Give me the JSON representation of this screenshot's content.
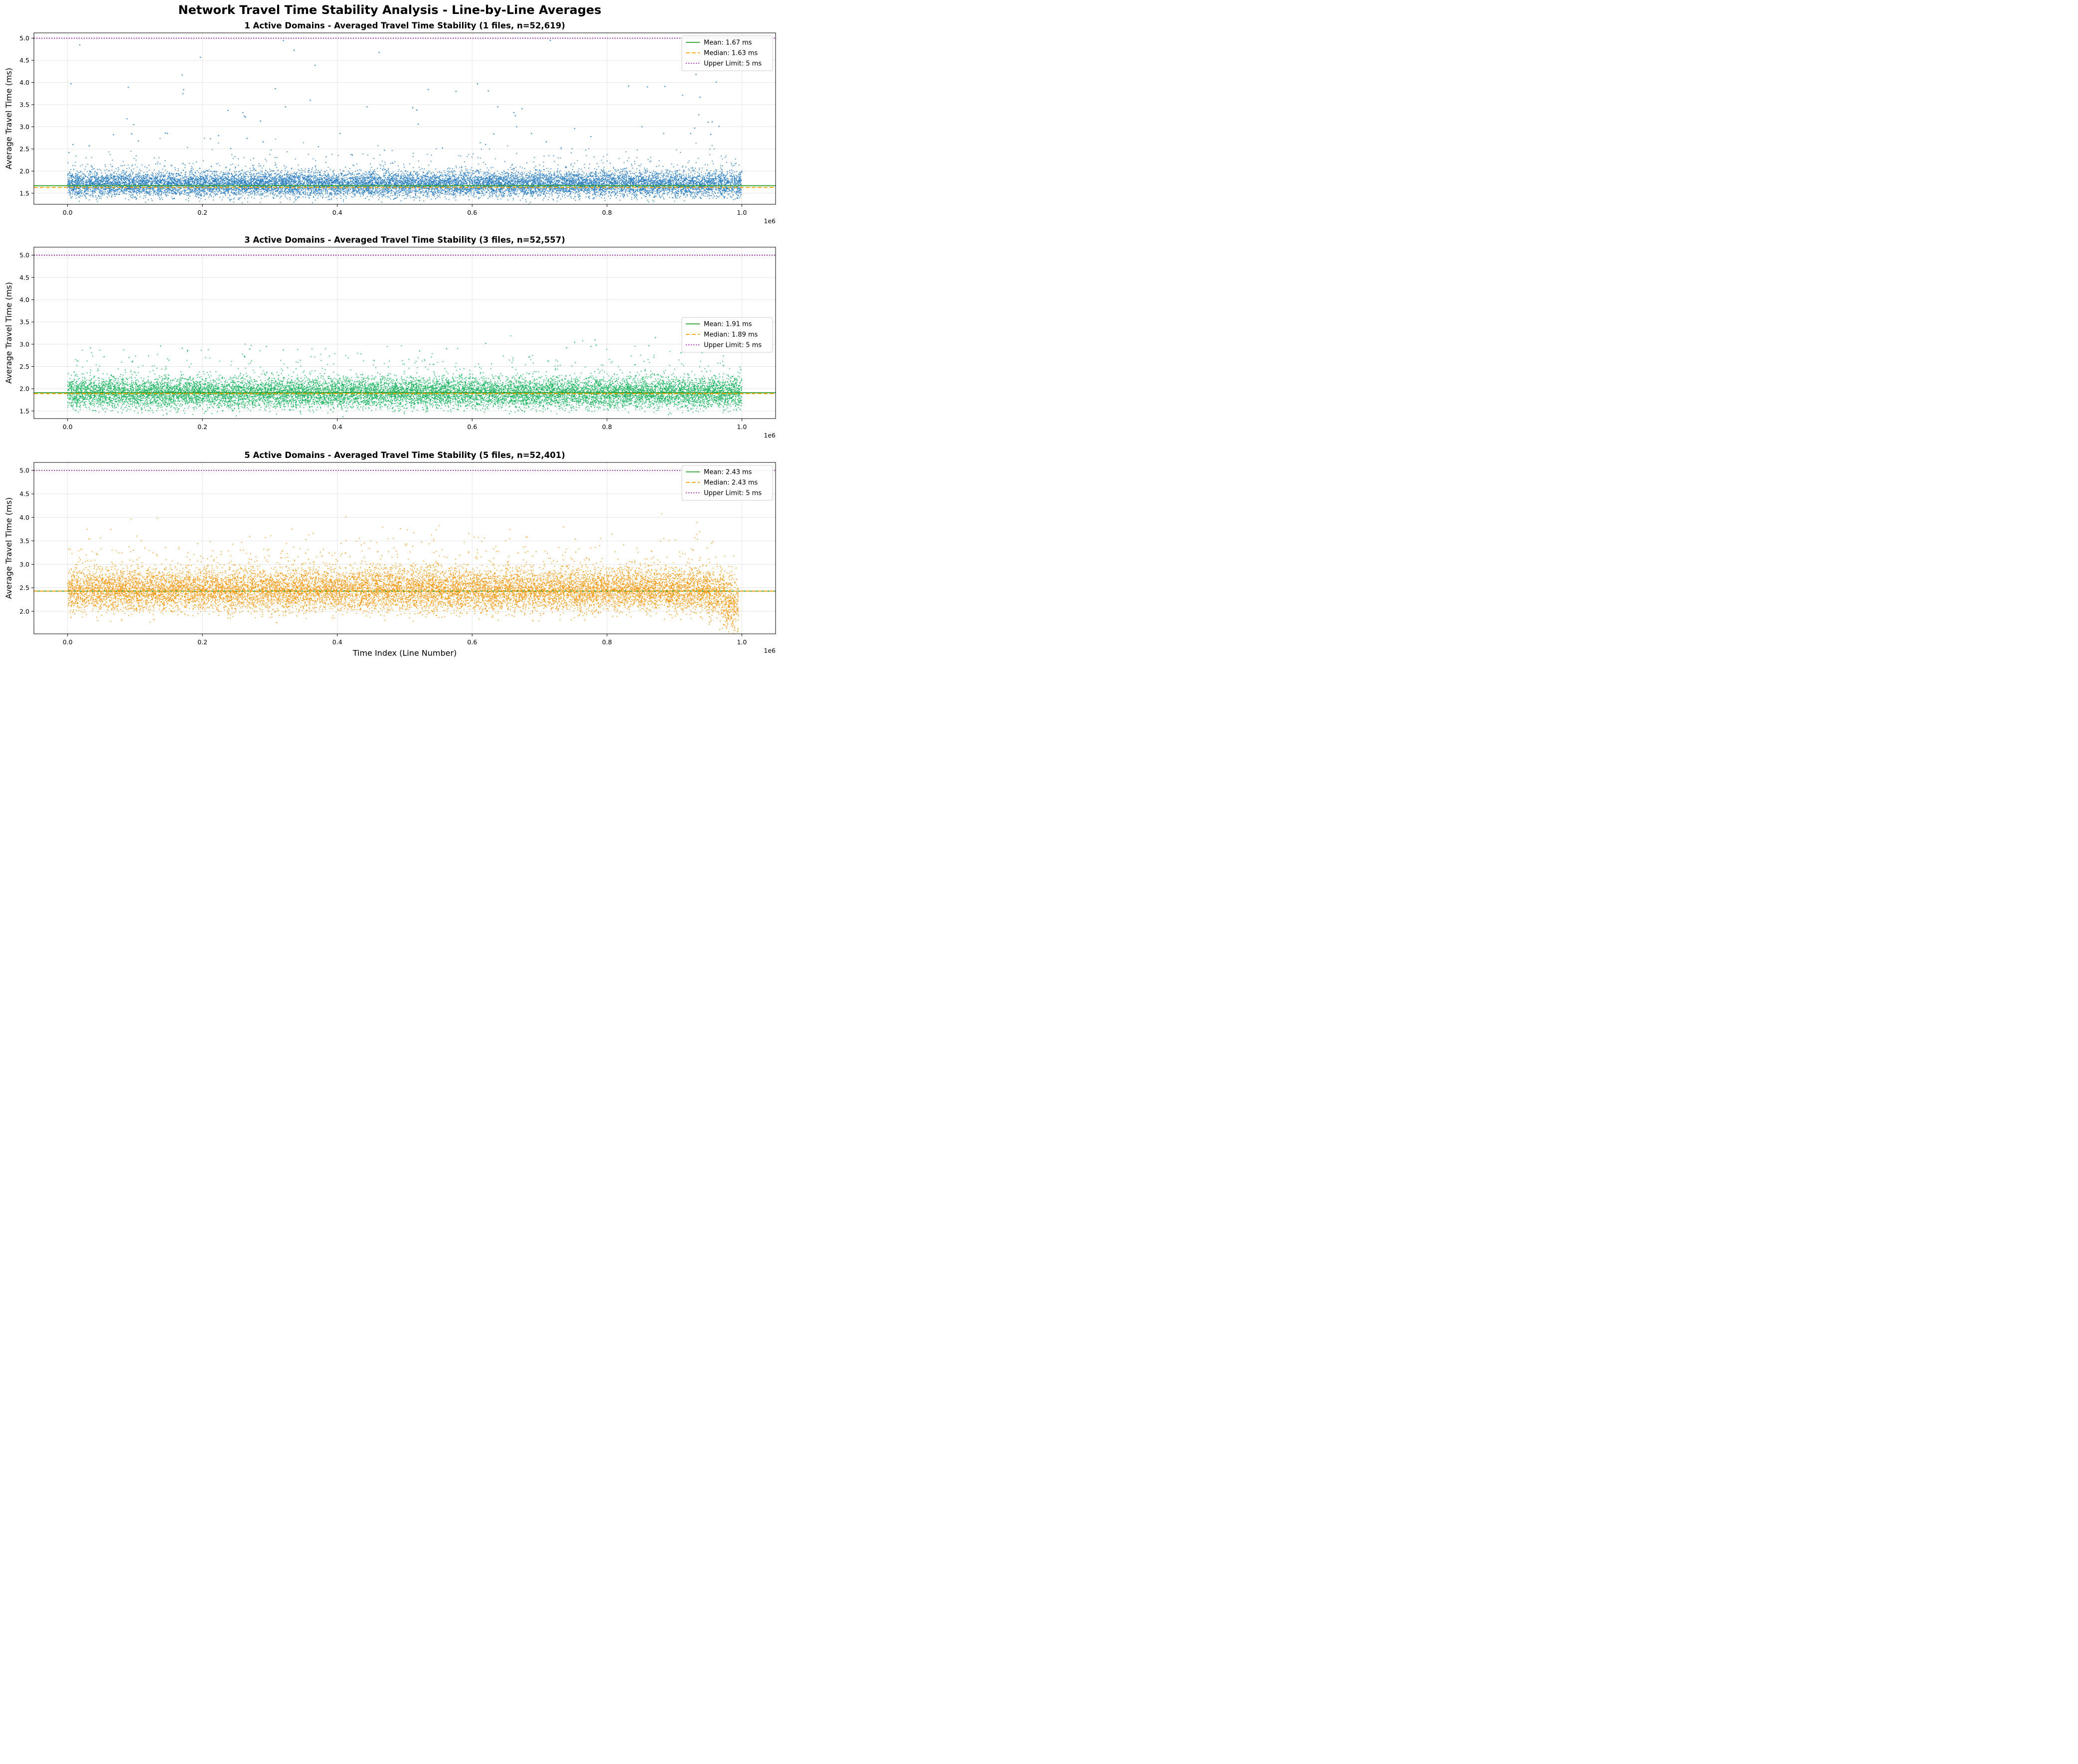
{
  "figure": {
    "title": "Network Travel Time Stability Analysis - Line-by-Line Averages"
  },
  "chart_data": [
    {
      "type": "scatter",
      "title": "1 Active Domains - Averaged Travel Time Stability (1 files, n=52,619)",
      "xlabel": "",
      "ylabel": "Average Travel Time (ms)",
      "x_offset_label": "1e6",
      "xlim": [
        -50000,
        1050000
      ],
      "ylim": [
        1.25,
        5.12
      ],
      "xticks": [
        0,
        200000,
        400000,
        600000,
        800000,
        1000000
      ],
      "xtick_labels": [
        "0.0",
        "0.2",
        "0.4",
        "0.6",
        "0.8",
        "1.0"
      ],
      "yticks": [
        1.5,
        2.0,
        2.5,
        3.0,
        3.5,
        4.0,
        4.5,
        5.0
      ],
      "ytick_labels": [
        "1.5",
        "2.0",
        "2.5",
        "3.0",
        "3.5",
        "4.0",
        "4.5",
        "5.0"
      ],
      "grid": true,
      "legend_position": "top-right",
      "point_color": "#2f80c0",
      "n": 52619,
      "band": {
        "x_range": [
          0,
          1000000
        ],
        "y_core": [
          1.45,
          1.95
        ],
        "profile": "flat"
      },
      "outliers": [
        {
          "x": 2000,
          "y": 2.42
        },
        {
          "x": 5000,
          "y": 3.97
        },
        {
          "x": 8000,
          "y": 2.6
        },
        {
          "x": 18000,
          "y": 4.85
        },
        {
          "x": 32000,
          "y": 2.57
        },
        {
          "x": 68000,
          "y": 2.82
        },
        {
          "x": 88000,
          "y": 3.18
        },
        {
          "x": 90000,
          "y": 3.89
        },
        {
          "x": 95000,
          "y": 2.84
        },
        {
          "x": 98000,
          "y": 3.05
        },
        {
          "x": 105000,
          "y": 2.68
        },
        {
          "x": 145000,
          "y": 2.86
        },
        {
          "x": 148000,
          "y": 2.85
        },
        {
          "x": 170000,
          "y": 4.17
        },
        {
          "x": 171000,
          "y": 3.75
        },
        {
          "x": 172000,
          "y": 3.84
        },
        {
          "x": 197000,
          "y": 4.57
        },
        {
          "x": 212000,
          "y": 2.73
        },
        {
          "x": 224000,
          "y": 2.8
        },
        {
          "x": 238000,
          "y": 3.37
        },
        {
          "x": 242000,
          "y": 2.51
        },
        {
          "x": 260000,
          "y": 3.32
        },
        {
          "x": 262000,
          "y": 3.24
        },
        {
          "x": 264000,
          "y": 3.22
        },
        {
          "x": 266000,
          "y": 2.74
        },
        {
          "x": 286000,
          "y": 3.13
        },
        {
          "x": 290000,
          "y": 2.66
        },
        {
          "x": 308000,
          "y": 3.86
        },
        {
          "x": 320000,
          "y": 4.95
        },
        {
          "x": 323000,
          "y": 3.45
        },
        {
          "x": 336000,
          "y": 4.73
        },
        {
          "x": 360000,
          "y": 3.6
        },
        {
          "x": 367000,
          "y": 4.39
        },
        {
          "x": 372000,
          "y": 2.55
        },
        {
          "x": 404000,
          "y": 2.85
        },
        {
          "x": 422000,
          "y": 2.37
        },
        {
          "x": 444000,
          "y": 3.45
        },
        {
          "x": 462000,
          "y": 4.68
        },
        {
          "x": 470000,
          "y": 2.47
        },
        {
          "x": 512000,
          "y": 3.43
        },
        {
          "x": 518000,
          "y": 3.38
        },
        {
          "x": 520000,
          "y": 3.06
        },
        {
          "x": 535000,
          "y": 3.84
        },
        {
          "x": 556000,
          "y": 2.52
        },
        {
          "x": 576000,
          "y": 3.8
        },
        {
          "x": 608000,
          "y": 3.97
        },
        {
          "x": 612000,
          "y": 2.64
        },
        {
          "x": 620000,
          "y": 2.6
        },
        {
          "x": 624000,
          "y": 3.81
        },
        {
          "x": 632000,
          "y": 2.84
        },
        {
          "x": 638000,
          "y": 3.45
        },
        {
          "x": 662000,
          "y": 3.32
        },
        {
          "x": 664000,
          "y": 3.25
        },
        {
          "x": 666000,
          "y": 3.0
        },
        {
          "x": 674000,
          "y": 3.41
        },
        {
          "x": 688000,
          "y": 2.85
        },
        {
          "x": 710000,
          "y": 2.66
        },
        {
          "x": 716000,
          "y": 4.95
        },
        {
          "x": 752000,
          "y": 2.96
        },
        {
          "x": 776000,
          "y": 2.78
        },
        {
          "x": 832000,
          "y": 3.92
        },
        {
          "x": 852000,
          "y": 3.0
        },
        {
          "x": 860000,
          "y": 3.9
        },
        {
          "x": 884000,
          "y": 2.85
        },
        {
          "x": 886000,
          "y": 3.91
        },
        {
          "x": 912000,
          "y": 3.71
        },
        {
          "x": 924000,
          "y": 2.85
        },
        {
          "x": 930000,
          "y": 2.97
        },
        {
          "x": 932000,
          "y": 4.18
        },
        {
          "x": 936000,
          "y": 3.27
        },
        {
          "x": 938000,
          "y": 3.67
        },
        {
          "x": 950000,
          "y": 3.1
        },
        {
          "x": 954000,
          "y": 2.83
        },
        {
          "x": 956000,
          "y": 3.11
        },
        {
          "x": 962000,
          "y": 4.01
        },
        {
          "x": 966000,
          "y": 3.01
        }
      ],
      "reference_lines": [
        {
          "label": "Mean: 1.67 ms",
          "y": 1.67,
          "color": "#2ca02c",
          "style": "solid"
        },
        {
          "label": "Median: 1.63 ms",
          "y": 1.63,
          "color": "#ffa000",
          "style": "dashed"
        },
        {
          "label": "Upper Limit: 5 ms",
          "y": 5.0,
          "color": "#a020b0",
          "style": "dotted"
        }
      ]
    },
    {
      "type": "scatter",
      "title": "3 Active Domains - Averaged Travel Time Stability (3 files, n=52,557)",
      "xlabel": "",
      "ylabel": "Average Travel Time (ms)",
      "x_offset_label": "1e6",
      "xlim": [
        -50000,
        1050000
      ],
      "ylim": [
        1.33,
        5.18
      ],
      "xticks": [
        0,
        200000,
        400000,
        600000,
        800000,
        1000000
      ],
      "xtick_labels": [
        "0.0",
        "0.2",
        "0.4",
        "0.6",
        "0.8",
        "1.0"
      ],
      "yticks": [
        1.5,
        2.0,
        2.5,
        3.0,
        3.5,
        4.0,
        4.5,
        5.0
      ],
      "ytick_labels": [
        "1.5",
        "2.0",
        "2.5",
        "3.0",
        "3.5",
        "4.0",
        "4.5",
        "5.0"
      ],
      "grid": true,
      "legend_position": "center-right",
      "point_color": "#22b565",
      "n": 52557,
      "band": {
        "x_range": [
          0,
          1000000
        ],
        "y_core": [
          1.6,
          2.2
        ],
        "profile": "flat"
      },
      "outliers": [
        {
          "x": 34000,
          "y": 2.92
        },
        {
          "x": 54000,
          "y": 2.72
        },
        {
          "x": 138000,
          "y": 2.96
        },
        {
          "x": 170000,
          "y": 2.91
        },
        {
          "x": 178000,
          "y": 2.86
        },
        {
          "x": 270000,
          "y": 2.89
        },
        {
          "x": 295000,
          "y": 2.95
        },
        {
          "x": 320000,
          "y": 2.87
        },
        {
          "x": 522000,
          "y": 2.85
        },
        {
          "x": 562000,
          "y": 2.9
        },
        {
          "x": 620000,
          "y": 3.02
        },
        {
          "x": 740000,
          "y": 2.92
        },
        {
          "x": 752000,
          "y": 3.04
        },
        {
          "x": 776000,
          "y": 2.95
        },
        {
          "x": 782000,
          "y": 3.1
        },
        {
          "x": 784000,
          "y": 2.98
        },
        {
          "x": 862000,
          "y": 2.97
        },
        {
          "x": 872000,
          "y": 3.15
        },
        {
          "x": 910000,
          "y": 2.81
        }
      ],
      "reference_lines": [
        {
          "label": "Mean: 1.91 ms",
          "y": 1.91,
          "color": "#2ca02c",
          "style": "solid"
        },
        {
          "label": "Median: 1.89 ms",
          "y": 1.89,
          "color": "#ffa000",
          "style": "dashed"
        },
        {
          "label": "Upper Limit: 5 ms",
          "y": 5.0,
          "color": "#a020b0",
          "style": "dotted"
        }
      ]
    },
    {
      "type": "scatter",
      "title": "5 Active Domains - Averaged Travel Time Stability (5 files, n=52,401)",
      "xlabel": "Time Index (Line Number)",
      "ylabel": "Average Travel Time (ms)",
      "x_offset_label": "1e6",
      "xlim": [
        -50000,
        1050000
      ],
      "ylim": [
        1.52,
        5.17
      ],
      "xticks": [
        0,
        200000,
        400000,
        600000,
        800000,
        1000000
      ],
      "xtick_labels": [
        "0.0",
        "0.2",
        "0.4",
        "0.6",
        "0.8",
        "1.0"
      ],
      "yticks": [
        2.0,
        2.5,
        3.0,
        3.5,
        4.0,
        4.5,
        5.0
      ],
      "ytick_labels": [
        "2.0",
        "2.5",
        "3.0",
        "3.5",
        "4.0",
        "4.5",
        "5.0"
      ],
      "grid": true,
      "legend_position": "top-right",
      "point_color": "#f29a16",
      "n": 52401,
      "band": {
        "x_range": [
          0,
          995000
        ],
        "y_core": [
          2.05,
          2.85
        ],
        "profile": "tail-drop"
      },
      "outliers": [
        {
          "x": 20000,
          "y": 3.32
        },
        {
          "x": 44000,
          "y": 3.21
        },
        {
          "x": 412000,
          "y": 3.24
        },
        {
          "x": 460000,
          "y": 3.27
        },
        {
          "x": 668000,
          "y": 3.24
        },
        {
          "x": 866000,
          "y": 3.28
        },
        {
          "x": 928000,
          "y": 3.3
        },
        {
          "x": 310000,
          "y": 1.76
        },
        {
          "x": 80000,
          "y": 1.82
        },
        {
          "x": 128000,
          "y": 1.83
        },
        {
          "x": 690000,
          "y": 1.8
        },
        {
          "x": 5000,
          "y": 1.87
        }
      ],
      "reference_lines": [
        {
          "label": "Mean: 2.43 ms",
          "y": 2.43,
          "color": "#2ca02c",
          "style": "solid"
        },
        {
          "label": "Median: 2.43 ms",
          "y": 2.43,
          "color": "#ffa000",
          "style": "dashed"
        },
        {
          "label": "Upper Limit: 5 ms",
          "y": 5.0,
          "color": "#a020b0",
          "style": "dotted"
        }
      ]
    }
  ]
}
